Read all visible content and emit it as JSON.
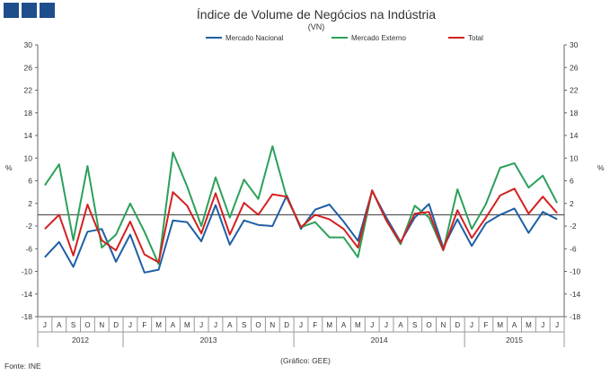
{
  "logo": {
    "name": "ine-logo-icon",
    "color": "#1f4e8c"
  },
  "chart_data": {
    "type": "line",
    "title": "Índice de Volume de Negócios na Indústria",
    "subtitle": "(VN)",
    "ylabel_left": "%",
    "ylabel_right": "%",
    "ylim": [
      -18,
      30
    ],
    "yticks": [
      30,
      26,
      22,
      18,
      14,
      10,
      6,
      2,
      -2,
      -6,
      -10,
      -14,
      -18
    ],
    "grid": false,
    "legend_position": "top-center",
    "x": [
      "J",
      "A",
      "S",
      "O",
      "N",
      "D",
      "J",
      "F",
      "M",
      "A",
      "M",
      "J",
      "J",
      "A",
      "S",
      "O",
      "N",
      "D",
      "J",
      "F",
      "M",
      "A",
      "M",
      "J",
      "J",
      "A",
      "S",
      "O",
      "N",
      "D",
      "J",
      "F",
      "M",
      "A",
      "M",
      "J",
      "J"
    ],
    "years": [
      {
        "label": "2012",
        "start": 0,
        "end": 5
      },
      {
        "label": "2013",
        "start": 6,
        "end": 17
      },
      {
        "label": "2014",
        "start": 18,
        "end": 29
      },
      {
        "label": "2015",
        "start": 30,
        "end": 36
      }
    ],
    "series": [
      {
        "name": "Mercado Nacional",
        "color": "#1f5fa6",
        "values": [
          -7.5,
          -4.8,
          -9.2,
          -3.0,
          -2.5,
          -8.3,
          -3.5,
          -10.2,
          -9.7,
          -1.0,
          -1.3,
          -4.7,
          1.7,
          -5.3,
          -1.0,
          -1.8,
          -2.0,
          3.4,
          -2.5,
          0.9,
          1.8,
          -1.2,
          -4.6,
          4.2,
          -0.5,
          -4.8,
          -0.5,
          1.9,
          -5.8,
          -0.8,
          -5.5,
          -1.5,
          0.0,
          1.1,
          -3.2,
          0.5,
          -0.8
        ]
      },
      {
        "name": "Mercado Externo",
        "color": "#2ca05a",
        "values": [
          5.2,
          8.9,
          -4.5,
          8.6,
          -5.8,
          -3.5,
          2.0,
          -3.0,
          -8.7,
          11.0,
          5.0,
          -2.0,
          6.6,
          -0.5,
          6.2,
          2.8,
          12.1,
          3.0,
          -2.2,
          -1.3,
          -4.0,
          -4.0,
          -7.5,
          4.3,
          -1.0,
          -5.2,
          1.6,
          -0.5,
          -6.3,
          4.5,
          -2.5,
          1.9,
          8.3,
          9.1,
          4.8,
          6.9,
          2.1
        ]
      },
      {
        "name": "Total",
        "color": "#d42020",
        "values": [
          -2.5,
          0.0,
          -7.2,
          1.8,
          -4.5,
          -6.3,
          -1.2,
          -7.0,
          -8.4,
          4.0,
          1.6,
          -3.3,
          3.8,
          -3.5,
          2.1,
          0.0,
          3.6,
          3.2,
          -2.2,
          0.0,
          -0.8,
          -2.5,
          -5.8,
          4.3,
          -1.0,
          -4.9,
          0.2,
          0.5,
          -6.2,
          0.8,
          -4.1,
          -0.5,
          3.4,
          4.6,
          0.2,
          3.2,
          0.3
        ]
      }
    ]
  },
  "footer": {
    "source": "Fonte: INE",
    "credit": "(Gráfico: GEE)"
  }
}
